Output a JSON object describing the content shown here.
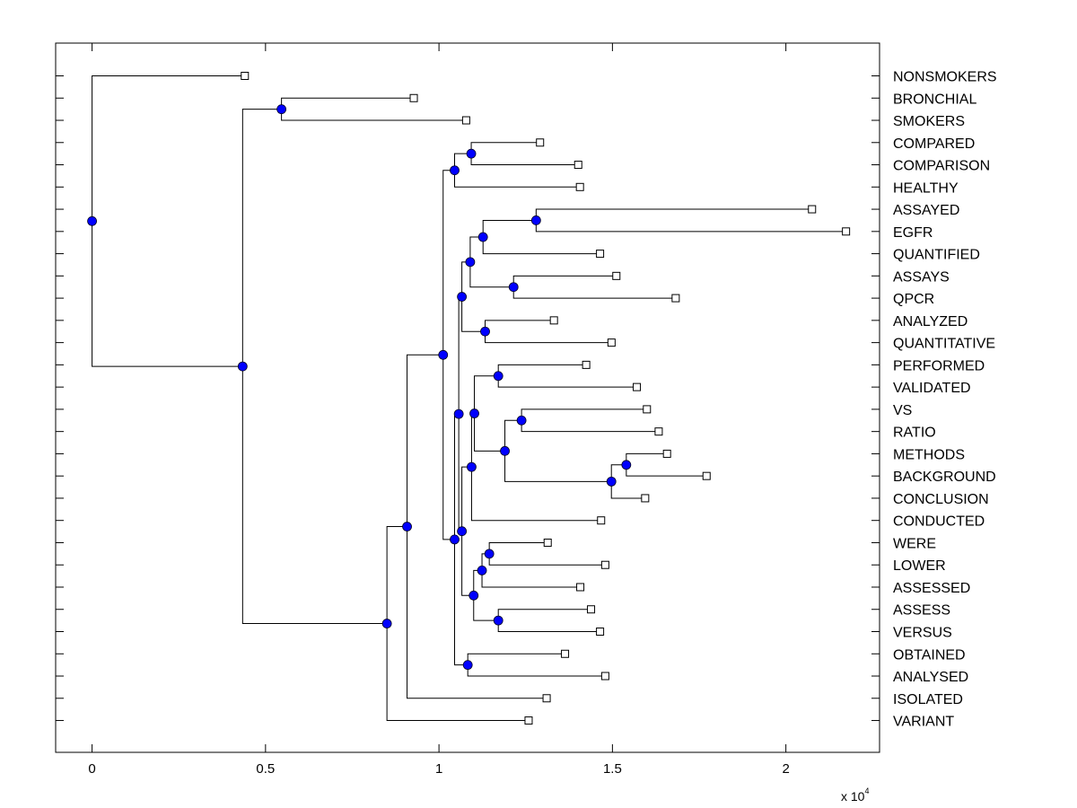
{
  "chart_data": {
    "type": "dendrogram",
    "orientation": "horizontal",
    "xlim": [
      -0.105,
      2.27
    ],
    "x_scale_label": "x 10",
    "x_scale_exponent": "4",
    "x_ticks": [
      {
        "value": 0,
        "label": "0"
      },
      {
        "value": 0.5,
        "label": "0.5"
      },
      {
        "value": 1,
        "label": "1"
      },
      {
        "value": 1.5,
        "label": "1.5"
      },
      {
        "value": 2,
        "label": "2"
      }
    ],
    "leaves": [
      {
        "label": "NONSMOKERS",
        "value": 0.43
      },
      {
        "label": "BRONCHIAL",
        "value": 0.917
      },
      {
        "label": "SMOKERS",
        "value": 1.068
      },
      {
        "label": "COMPARED",
        "value": 1.281
      },
      {
        "label": "COMPARISON",
        "value": 1.391
      },
      {
        "label": "HEALTHY",
        "value": 1.396
      },
      {
        "label": "ASSAYED",
        "value": 2.065
      },
      {
        "label": "EGFR",
        "value": 2.163
      },
      {
        "label": "QUANTIFIED",
        "value": 1.454
      },
      {
        "label": "ASSAYS",
        "value": 1.501
      },
      {
        "label": "QPCR",
        "value": 1.672
      },
      {
        "label": "ANALYZED",
        "value": 1.321
      },
      {
        "label": "QUANTITATIVE",
        "value": 1.487
      },
      {
        "label": "PERFORMED",
        "value": 1.414
      },
      {
        "label": "VALIDATED",
        "value": 1.56
      },
      {
        "label": "VS",
        "value": 1.589
      },
      {
        "label": "RATIO",
        "value": 1.623
      },
      {
        "label": "METHODS",
        "value": 1.647
      },
      {
        "label": "BACKGROUND",
        "value": 1.761
      },
      {
        "label": "CONCLUSION",
        "value": 1.584
      },
      {
        "label": "CONDUCTED",
        "value": 1.457
      },
      {
        "label": "WERE",
        "value": 1.303
      },
      {
        "label": "LOWER",
        "value": 1.469
      },
      {
        "label": "ASSESSED",
        "value": 1.397
      },
      {
        "label": "ASSESS",
        "value": 1.428
      },
      {
        "label": "VERSUS",
        "value": 1.454
      },
      {
        "label": "OBTAINED",
        "value": 1.353
      },
      {
        "label": "ANALYSED",
        "value": 1.469
      },
      {
        "label": "ISOLATED",
        "value": 1.3
      },
      {
        "label": "VARIANT",
        "value": 1.248
      }
    ],
    "merges": [
      {
        "id": "n01",
        "value": 1.28,
        "children": [
          "ASSAYED",
          "EGFR"
        ]
      },
      {
        "id": "n02",
        "value": 1.093,
        "children": [
          "COMPARED",
          "COMPARISON"
        ]
      },
      {
        "id": "n03",
        "value": 1.045,
        "children": [
          "n02",
          "HEALTHY"
        ]
      },
      {
        "id": "n04",
        "value": 1.127,
        "children": [
          "n01",
          "QUANTIFIED"
        ]
      },
      {
        "id": "n05",
        "value": 1.215,
        "children": [
          "ASSAYS",
          "QPCR"
        ]
      },
      {
        "id": "n06",
        "value": 1.09,
        "children": [
          "n04",
          "n05"
        ]
      },
      {
        "id": "n07",
        "value": 1.133,
        "children": [
          "ANALYZED",
          "QUANTITATIVE"
        ]
      },
      {
        "id": "n08",
        "value": 1.066,
        "children": [
          "n06",
          "n07"
        ]
      },
      {
        "id": "n09",
        "value": 1.171,
        "children": [
          "PERFORMED",
          "VALIDATED"
        ]
      },
      {
        "id": "n10",
        "value": 1.238,
        "children": [
          "VS",
          "RATIO"
        ]
      },
      {
        "id": "n11",
        "value": 1.54,
        "children": [
          "METHODS",
          "BACKGROUND"
        ]
      },
      {
        "id": "n12",
        "value": 1.497,
        "children": [
          "n11",
          "CONCLUSION"
        ]
      },
      {
        "id": "n13",
        "value": 1.19,
        "children": [
          "n10",
          "n12"
        ]
      },
      {
        "id": "n14",
        "value": 1.102,
        "children": [
          "n09",
          "n13"
        ]
      },
      {
        "id": "n15",
        "value": 1.094,
        "children": [
          "n14",
          "CONDUCTED"
        ]
      },
      {
        "id": "n16",
        "value": 1.145,
        "children": [
          "WERE",
          "LOWER"
        ]
      },
      {
        "id": "n17",
        "value": 1.124,
        "children": [
          "n16",
          "ASSESSED"
        ]
      },
      {
        "id": "n18",
        "value": 1.171,
        "children": [
          "ASSESS",
          "VERSUS"
        ]
      },
      {
        "id": "n19",
        "value": 1.1,
        "children": [
          "n17",
          "n18"
        ]
      },
      {
        "id": "n20",
        "value": 1.066,
        "children": [
          "n15",
          "n19"
        ]
      },
      {
        "id": "n21",
        "value": 1.057,
        "children": [
          "n08",
          "n20"
        ]
      },
      {
        "id": "n22",
        "value": 1.083,
        "children": [
          "OBTAINED",
          "ANALYSED"
        ]
      },
      {
        "id": "n23",
        "value": 1.045,
        "children": [
          "n21",
          "n22"
        ]
      },
      {
        "id": "n24",
        "value": 1.012,
        "children": [
          "n03",
          "n23"
        ]
      },
      {
        "id": "n25",
        "value": 0.908,
        "children": [
          "n24",
          "ISOLATED"
        ]
      },
      {
        "id": "n26",
        "value": 0.85,
        "children": [
          "n25",
          "VARIANT"
        ]
      },
      {
        "id": "n27",
        "value": 0.546,
        "children": [
          "BRONCHIAL",
          "SMOKERS"
        ]
      },
      {
        "id": "n28",
        "value": 0.434,
        "children": [
          "n27",
          "n26"
        ]
      },
      {
        "id": "n29",
        "value": 0.0,
        "children": [
          "NONSMOKERS",
          "n28"
        ]
      }
    ],
    "node_color": "#0000ff",
    "line_color": "#000000",
    "leaf_marker": "open-square"
  }
}
